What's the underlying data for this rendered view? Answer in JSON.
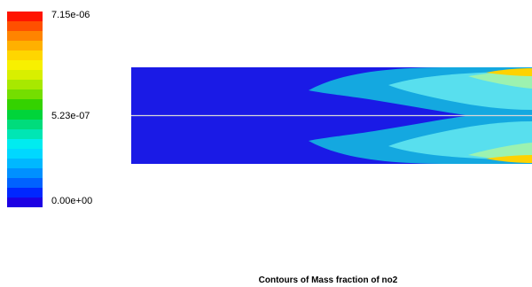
{
  "chart_data": {
    "type": "heatmap",
    "title": "Contours of Mass fraction of no2",
    "colorbar": {
      "ticks": [
        {
          "label": "7.15e-06",
          "value": 7.15e-06
        },
        {
          "label": "5.23e-07",
          "value": 5.23e-07
        },
        {
          "label": "0.00e+00",
          "value": 0.0
        }
      ],
      "levels": 20,
      "colors": [
        "#1c00e3",
        "#0027ff",
        "#0062ff",
        "#0090ff",
        "#00b8ff",
        "#00d8ff",
        "#00ecf0",
        "#00e6b4",
        "#00dc7c",
        "#00d43a",
        "#34d200",
        "#74de00",
        "#a8e800",
        "#d8ef00",
        "#f8f000",
        "#ffd600",
        "#ffb000",
        "#ff8400",
        "#ff5000",
        "#ff1400"
      ]
    },
    "colors": {
      "background_field": "#1a1ae6",
      "centerline": "#d8d8d8",
      "low_plume": "#14a8e0",
      "mid_plume": "#58dfee",
      "high_plume": "#9cf2b0",
      "peak": "#ffd200"
    }
  }
}
